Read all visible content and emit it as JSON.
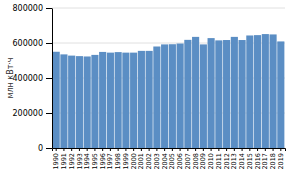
{
  "chart_data": {
    "type": "bar",
    "categories": [
      "1990",
      "1991",
      "1992",
      "1993",
      "1994",
      "1995",
      "1996",
      "1997",
      "1998",
      "1999",
      "2000",
      "2001",
      "2002",
      "2003",
      "2004",
      "2005",
      "2006",
      "2007",
      "2008",
      "2009",
      "2010",
      "2011",
      "2012",
      "2013",
      "2014",
      "2015",
      "2016",
      "2017",
      "2018",
      "2019"
    ],
    "values": [
      550000,
      535000,
      528000,
      525000,
      523000,
      532000,
      549000,
      545000,
      548000,
      545000,
      545000,
      555000,
      555000,
      580000,
      592000,
      593000,
      597000,
      618000,
      635000,
      592000,
      628000,
      615000,
      617000,
      635000,
      617000,
      643000,
      645000,
      651000,
      649000,
      609000
    ],
    "color": "#5b8ec4",
    "ylabel": "млн кВт·ч",
    "ylim": [
      0,
      800000
    ],
    "yticks": [
      0,
      200000,
      400000,
      600000,
      800000
    ],
    "grid": true
  }
}
